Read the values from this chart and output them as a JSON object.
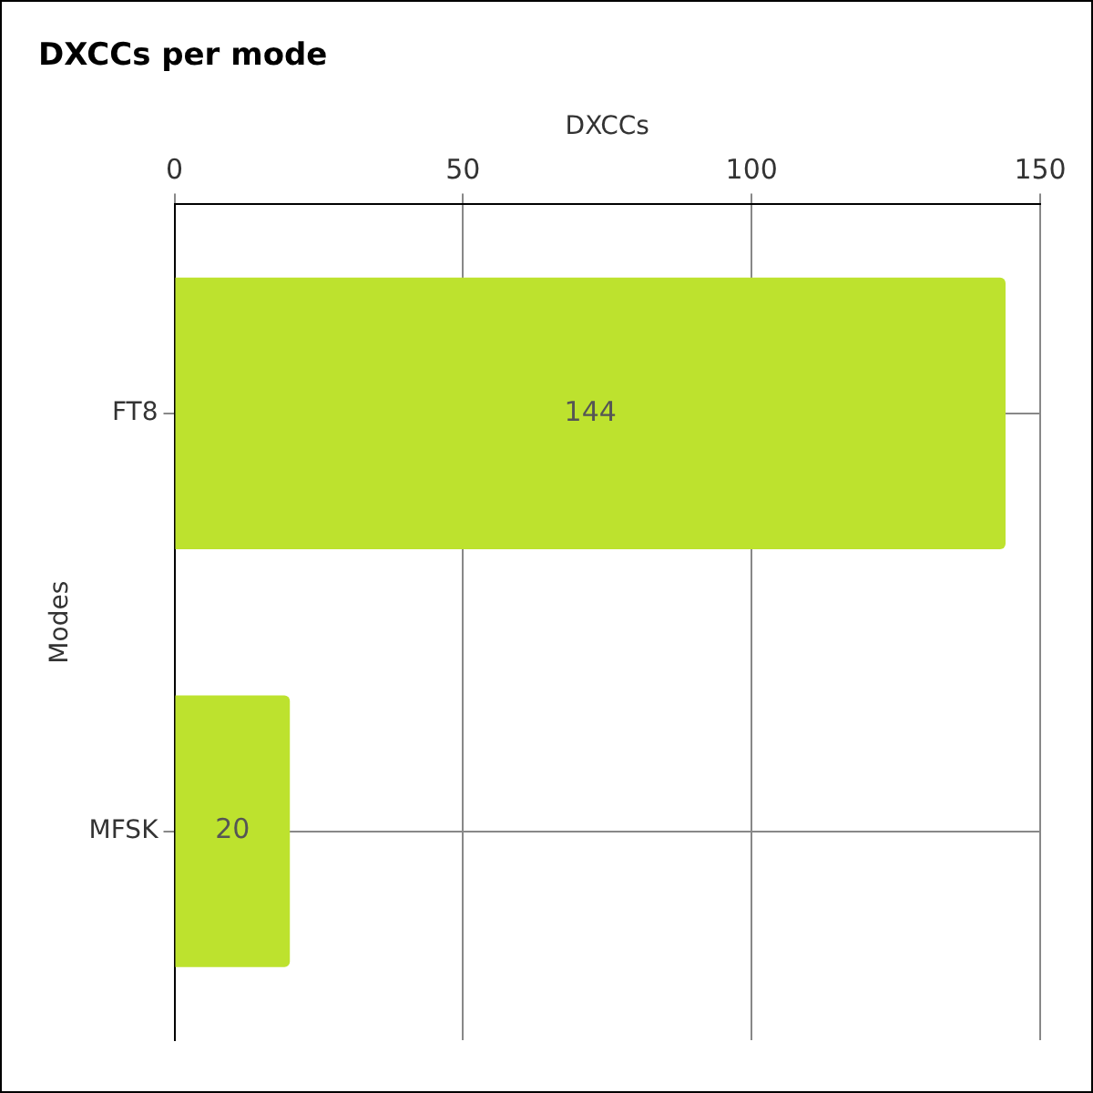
{
  "chart_data": {
    "type": "bar",
    "orientation": "horizontal",
    "title": "DXCCs per mode",
    "xlabel": "DXCCs",
    "ylabel": "Modes",
    "categories": [
      "FT8",
      "MFSK"
    ],
    "values": [
      144,
      20
    ],
    "color": "#bde22e",
    "xlim": [
      0,
      150
    ],
    "xticks": [
      0,
      50,
      100,
      150
    ],
    "grid": true,
    "data_labels": true
  }
}
